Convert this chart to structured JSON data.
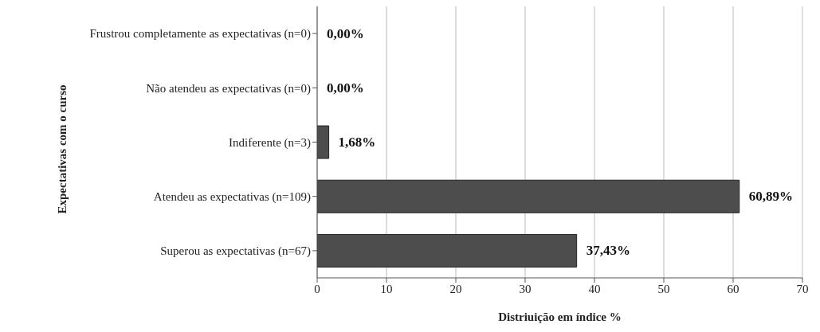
{
  "chart_data": {
    "type": "bar",
    "orientation": "horizontal",
    "xlabel": "Distriuição em índice %",
    "ylabel": "Expectativas com o curso",
    "categories": [
      "Frustrou completamente as expectativas (n=0)",
      "Não atendeu as expectativas (n=0)",
      "Indiferente (n=3)",
      "Atendeu as expectativas (n=109)",
      "Superou as expectativas (n=67)"
    ],
    "values": [
      0,
      0,
      1.68,
      60.89,
      37.43
    ],
    "value_labels": [
      "0,00%",
      "0,00%",
      "1,68%",
      "60,89%",
      "37,43%"
    ],
    "color": "#4d4d4d",
    "xlim": [
      0,
      70
    ],
    "xticks": [
      0,
      10,
      20,
      30,
      40,
      50,
      60,
      70
    ],
    "grid": "x"
  }
}
